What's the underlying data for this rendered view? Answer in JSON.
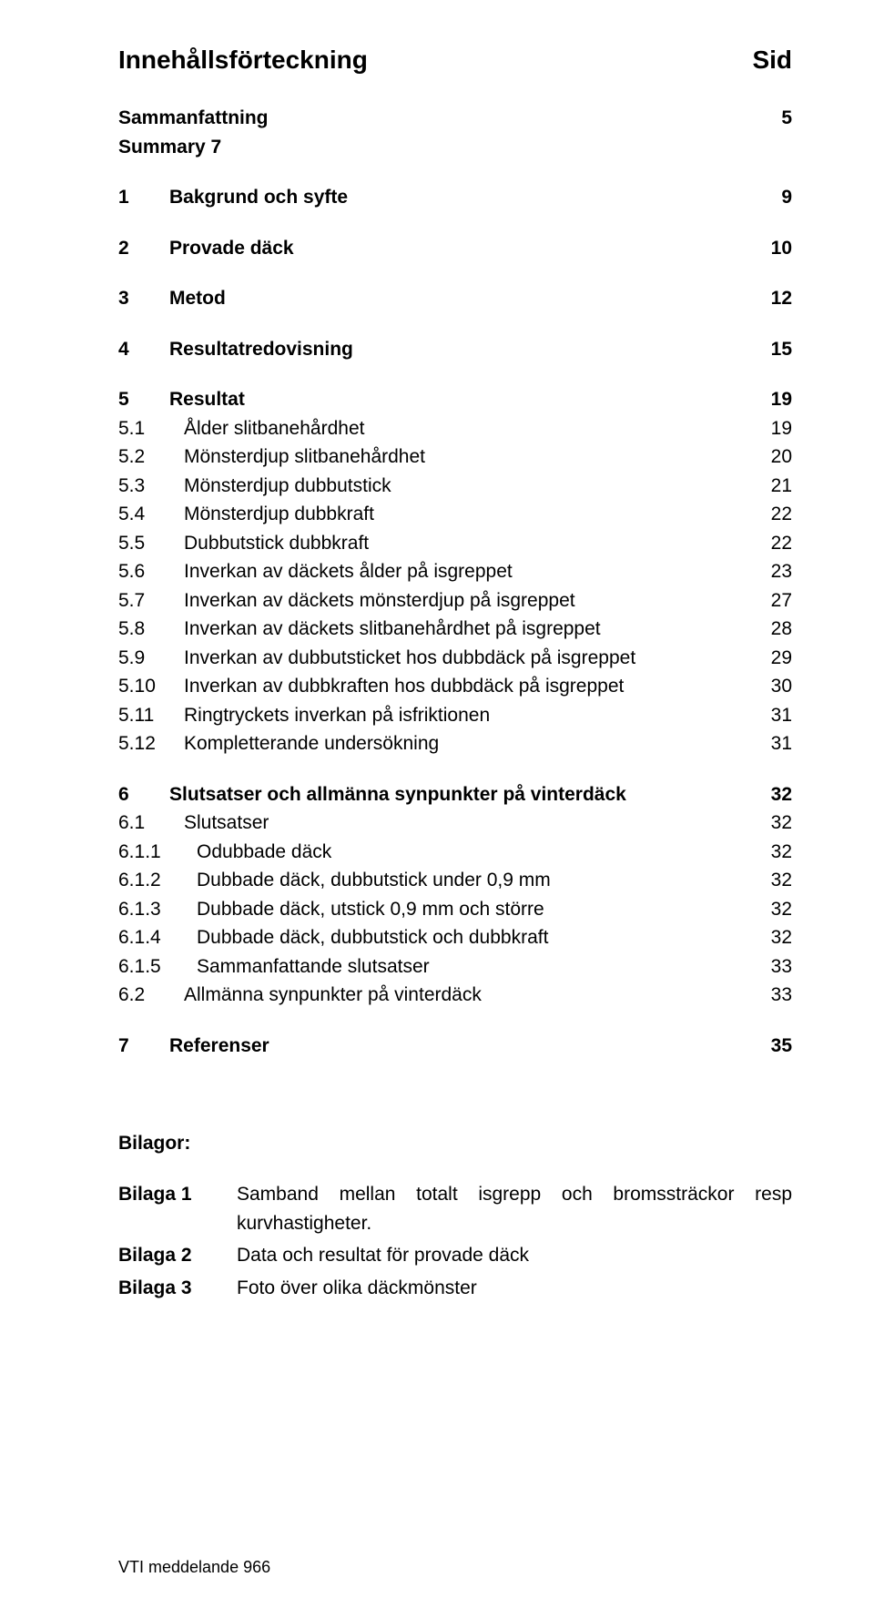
{
  "header": {
    "title": "Innehållsförteckning",
    "page_col": "Sid"
  },
  "layout": {
    "num_widths": {
      "none": 0,
      "d1": 56,
      "d2": 72,
      "d3": 86
    }
  },
  "toc": [
    {
      "num": "",
      "label": "Sammanfattning",
      "page": "5",
      "bold": true,
      "depth": "none",
      "gap_after": 0
    },
    {
      "num": "",
      "label": "Summary 7",
      "page": "",
      "bold": true,
      "depth": "none",
      "gap_after": 24
    },
    {
      "num": "1",
      "label": "Bakgrund och syfte",
      "page": "9",
      "bold": true,
      "depth": "d1",
      "gap_after": 24
    },
    {
      "num": "2",
      "label": "Provade däck",
      "page": "10",
      "bold": true,
      "depth": "d1",
      "gap_after": 24
    },
    {
      "num": "3",
      "label": "Metod",
      "page": "12",
      "bold": true,
      "depth": "d1",
      "gap_after": 24
    },
    {
      "num": "4",
      "label": "Resultatredovisning",
      "page": "15",
      "bold": true,
      "depth": "d1",
      "gap_after": 24
    },
    {
      "num": "5",
      "label": "Resultat",
      "page": "19",
      "bold": true,
      "depth": "d1",
      "gap_after": 0
    },
    {
      "num": "5.1",
      "label": "Ålder slitbanehårdhet",
      "page": "19",
      "bold": false,
      "depth": "d2",
      "gap_after": 0
    },
    {
      "num": "5.2",
      "label": "Mönsterdjup slitbanehårdhet",
      "page": "20",
      "bold": false,
      "depth": "d2",
      "gap_after": 0
    },
    {
      "num": "5.3",
      "label": "Mönsterdjup dubbutstick",
      "page": "21",
      "bold": false,
      "depth": "d2",
      "gap_after": 0
    },
    {
      "num": "5.4",
      "label": "Mönsterdjup dubbkraft",
      "page": "22",
      "bold": false,
      "depth": "d2",
      "gap_after": 0
    },
    {
      "num": "5.5",
      "label": "Dubbutstick dubbkraft",
      "page": "22",
      "bold": false,
      "depth": "d2",
      "gap_after": 0
    },
    {
      "num": "5.6",
      "label": "Inverkan av däckets ålder på isgreppet",
      "page": "23",
      "bold": false,
      "depth": "d2",
      "gap_after": 0
    },
    {
      "num": "5.7",
      "label": "Inverkan av däckets mönsterdjup på isgreppet",
      "page": "27",
      "bold": false,
      "depth": "d2",
      "gap_after": 0
    },
    {
      "num": "5.8",
      "label": "Inverkan av däckets slitbanehårdhet på isgreppet",
      "page": "28",
      "bold": false,
      "depth": "d2",
      "gap_after": 0
    },
    {
      "num": "5.9",
      "label": "Inverkan av dubbutsticket hos dubbdäck på isgreppet",
      "page": "29",
      "bold": false,
      "depth": "d2",
      "gap_after": 0
    },
    {
      "num": "5.10",
      "label": "Inverkan av dubbkraften hos dubbdäck på isgreppet",
      "page": "30",
      "bold": false,
      "depth": "d2",
      "gap_after": 0
    },
    {
      "num": "5.11",
      "label": "Ringtryckets inverkan på isfriktionen",
      "page": "31",
      "bold": false,
      "depth": "d2",
      "gap_after": 0
    },
    {
      "num": "5.12",
      "label": "Kompletterande undersökning",
      "page": "31",
      "bold": false,
      "depth": "d2",
      "gap_after": 24
    },
    {
      "num": "6",
      "label": "Slutsatser och allmänna synpunkter på vinterdäck",
      "page": "32",
      "bold": true,
      "depth": "d1",
      "gap_after": 0
    },
    {
      "num": "6.1",
      "label": "Slutsatser",
      "page": "32",
      "bold": false,
      "depth": "d2",
      "gap_after": 0
    },
    {
      "num": "6.1.1",
      "label": "Odubbade däck",
      "page": "32",
      "bold": false,
      "depth": "d3",
      "gap_after": 0
    },
    {
      "num": "6.1.2",
      "label": "Dubbade däck, dubbutstick under 0,9 mm",
      "page": "32",
      "bold": false,
      "depth": "d3",
      "gap_after": 0
    },
    {
      "num": "6.1.3",
      "label": "Dubbade däck, utstick 0,9 mm och större",
      "page": "32",
      "bold": false,
      "depth": "d3",
      "gap_after": 0
    },
    {
      "num": "6.1.4",
      "label": "Dubbade däck, dubbutstick och dubbkraft",
      "page": "32",
      "bold": false,
      "depth": "d3",
      "gap_after": 0
    },
    {
      "num": "6.1.5",
      "label": "Sammanfattande slutsatser",
      "page": "33",
      "bold": false,
      "depth": "d3",
      "gap_after": 0
    },
    {
      "num": "6.2",
      "label": "Allmänna synpunkter på vinterdäck",
      "page": "33",
      "bold": false,
      "depth": "d2",
      "gap_after": 24
    },
    {
      "num": "7",
      "label": "Referenser",
      "page": "35",
      "bold": true,
      "depth": "d1",
      "gap_after": 0
    }
  ],
  "attachments": {
    "title": "Bilagor:",
    "items": [
      {
        "key": "Bilaga 1",
        "value": "Samband mellan totalt isgrepp och bromssträckor resp kurvhastigheter."
      },
      {
        "key": "Bilaga 2",
        "value": "Data och resultat för provade däck"
      },
      {
        "key": "Bilaga 3",
        "value": "Foto över olika däckmönster"
      }
    ]
  },
  "footer": "VTI meddelande 966"
}
